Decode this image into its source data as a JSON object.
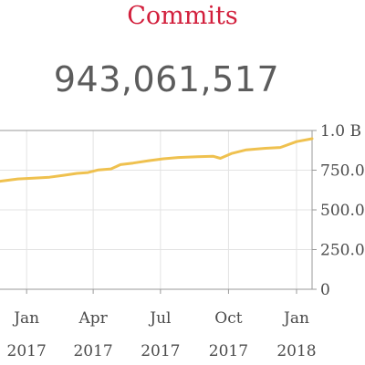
{
  "title": "Commits",
  "total": "943,061,517",
  "colors": {
    "title": "#d21f3c",
    "line": "#efc14f",
    "grid": "#e3e3e3",
    "axis": "#9a9a9a",
    "text": "#4a4a4a"
  },
  "chart_data": {
    "type": "line",
    "title": "Commits",
    "ylim": [
      0,
      1000
    ],
    "y_ticks": [
      {
        "value": 0,
        "label": "0"
      },
      {
        "value": 250,
        "label": "250.0"
      },
      {
        "value": 500,
        "label": "500.0"
      },
      {
        "value": 750,
        "label": "750.0"
      },
      {
        "value": 1000,
        "label": "1.0 B"
      }
    ],
    "x_ticks": [
      {
        "date": "2017-01-01",
        "label": [
          "Jan",
          "2017"
        ]
      },
      {
        "date": "2017-04-01",
        "label": [
          "Apr",
          "2017"
        ]
      },
      {
        "date": "2017-07-01",
        "label": [
          "Jul",
          "2017"
        ]
      },
      {
        "date": "2017-10-01",
        "label": [
          "Oct",
          "2017"
        ]
      },
      {
        "date": "2018-01-01",
        "label": [
          "Jan",
          "2018"
        ]
      }
    ],
    "xlim": [
      "2016-11-26",
      "2018-01-22"
    ],
    "grid": true,
    "series": [
      {
        "values": [
          {
            "date": "2016-11-26",
            "value": 680
          },
          {
            "date": "2016-12-20",
            "value": 695
          },
          {
            "date": "2017-01-10",
            "value": 700
          },
          {
            "date": "2017-02-01",
            "value": 706
          },
          {
            "date": "2017-02-20",
            "value": 718
          },
          {
            "date": "2017-03-10",
            "value": 730
          },
          {
            "date": "2017-03-25",
            "value": 735
          },
          {
            "date": "2017-04-08",
            "value": 752
          },
          {
            "date": "2017-04-25",
            "value": 758
          },
          {
            "date": "2017-05-08",
            "value": 785
          },
          {
            "date": "2017-05-25",
            "value": 795
          },
          {
            "date": "2017-06-15",
            "value": 810
          },
          {
            "date": "2017-07-05",
            "value": 822
          },
          {
            "date": "2017-07-25",
            "value": 830
          },
          {
            "date": "2017-08-20",
            "value": 835
          },
          {
            "date": "2017-09-10",
            "value": 838
          },
          {
            "date": "2017-09-20",
            "value": 825
          },
          {
            "date": "2017-10-05",
            "value": 855
          },
          {
            "date": "2017-10-25",
            "value": 878
          },
          {
            "date": "2017-11-20",
            "value": 888
          },
          {
            "date": "2017-12-10",
            "value": 893
          },
          {
            "date": "2018-01-01",
            "value": 930
          },
          {
            "date": "2018-01-22",
            "value": 948
          }
        ]
      }
    ]
  }
}
